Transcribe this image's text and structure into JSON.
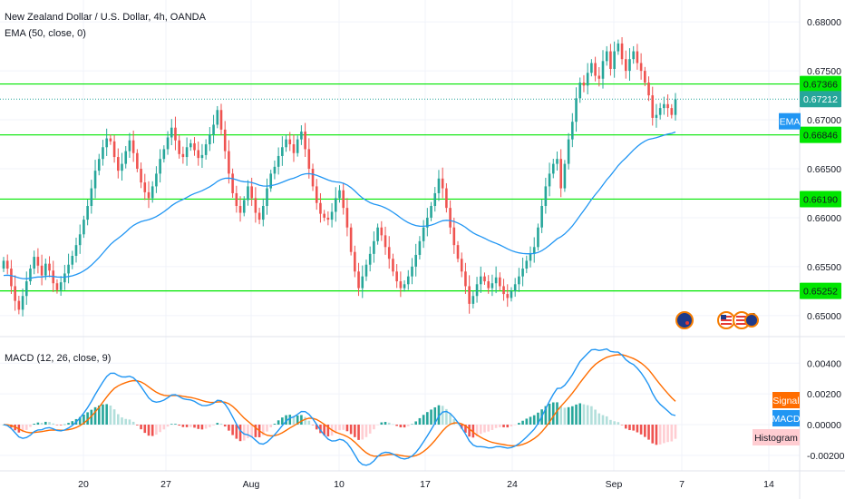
{
  "chart_data": [
    {
      "type": "candlestick",
      "title": "New Zealand Dollar / U.S. Dollar, 4h, OANDA",
      "indicator": "EMA (50, close, 0)",
      "ylim": [
        0.6485,
        0.6815
      ],
      "y_ticks": [
        "0.68000",
        "0.67500",
        "0.67000",
        "0.66500",
        "0.66000",
        "0.65500",
        "0.65000"
      ],
      "x_ticks": [
        "20",
        "27",
        "Aug",
        "10",
        "17",
        "24",
        "Sep",
        "7",
        "14"
      ],
      "colors": {
        "up": "#26a69a",
        "down": "#ef5350",
        "ema": "#2196f3",
        "level": "#00e600"
      },
      "horizontal_levels": [
        {
          "label": "0.67366",
          "value": 0.67366
        },
        {
          "label": "0.66846",
          "value": 0.66846
        },
        {
          "label": "0.66190",
          "value": 0.6619
        },
        {
          "label": "0.65252",
          "value": 0.65252
        }
      ],
      "last_price": {
        "label": "0.67212",
        "value": 0.67212
      },
      "ema_tag": "EMA",
      "series_close": [
        0.6556,
        0.6548,
        0.653,
        0.6515,
        0.6506,
        0.652,
        0.6535,
        0.6548,
        0.656,
        0.6551,
        0.6541,
        0.6553,
        0.6546,
        0.6533,
        0.6526,
        0.6534,
        0.6543,
        0.6552,
        0.6561,
        0.6572,
        0.6583,
        0.6598,
        0.6612,
        0.663,
        0.6648,
        0.666,
        0.6672,
        0.6681,
        0.6678,
        0.6662,
        0.6648,
        0.6655,
        0.6668,
        0.6679,
        0.6666,
        0.665,
        0.6636,
        0.6626,
        0.662,
        0.6632,
        0.6645,
        0.666,
        0.667,
        0.6682,
        0.6692,
        0.6679,
        0.6665,
        0.6662,
        0.6672,
        0.6676,
        0.6669,
        0.6661,
        0.6664,
        0.6675,
        0.6685,
        0.6695,
        0.671,
        0.669,
        0.6668,
        0.6645,
        0.6625,
        0.6612,
        0.6605,
        0.6618,
        0.6632,
        0.662,
        0.6605,
        0.6598,
        0.6612,
        0.663,
        0.6645,
        0.6652,
        0.6663,
        0.6672,
        0.668,
        0.6675,
        0.6666,
        0.668,
        0.6688,
        0.667,
        0.665,
        0.6632,
        0.6615,
        0.6604,
        0.66,
        0.6598,
        0.6606,
        0.662,
        0.6628,
        0.661,
        0.659,
        0.6565,
        0.6545,
        0.6528,
        0.654,
        0.6552,
        0.6563,
        0.6576,
        0.659,
        0.6582,
        0.657,
        0.6558,
        0.6545,
        0.6535,
        0.6528,
        0.6532,
        0.654,
        0.655,
        0.6562,
        0.6576,
        0.659,
        0.66,
        0.6612,
        0.6625,
        0.664,
        0.663,
        0.661,
        0.659,
        0.6572,
        0.6558,
        0.6545,
        0.653,
        0.6512,
        0.652,
        0.6532,
        0.654,
        0.6535,
        0.6528,
        0.6533,
        0.6539,
        0.653,
        0.6522,
        0.6518,
        0.6525,
        0.6532,
        0.654,
        0.6548,
        0.6556,
        0.6563,
        0.657,
        0.659,
        0.6612,
        0.6632,
        0.6645,
        0.6655,
        0.666,
        0.663,
        0.6655,
        0.668,
        0.6698,
        0.6722,
        0.6738,
        0.6735,
        0.6748,
        0.6758,
        0.6745,
        0.6742,
        0.676,
        0.677,
        0.6752,
        0.677,
        0.6778,
        0.6762,
        0.675,
        0.6762,
        0.677,
        0.6758,
        0.675,
        0.6738,
        0.6725,
        0.6702,
        0.6705,
        0.6712,
        0.6716,
        0.6712,
        0.6705,
        0.6721
      ],
      "macd": {
        "name": "MACD (12, 26, close, 9)",
        "ylim": [
          -0.0026,
          0.0052
        ],
        "y_ticks": [
          "0.00400",
          "0.00200",
          "0.00000",
          "-0.00200"
        ],
        "tags": [
          "Signal",
          "MACD",
          "Histogram"
        ],
        "colors": {
          "macd": "#2196f3",
          "signal": "#ff6d00",
          "hist_up_strong": "#26a69a",
          "hist_up_weak": "#b2dfdb",
          "hist_down_strong": "#ef5350",
          "hist_down_weak": "#ffcdd2"
        }
      }
    }
  ]
}
